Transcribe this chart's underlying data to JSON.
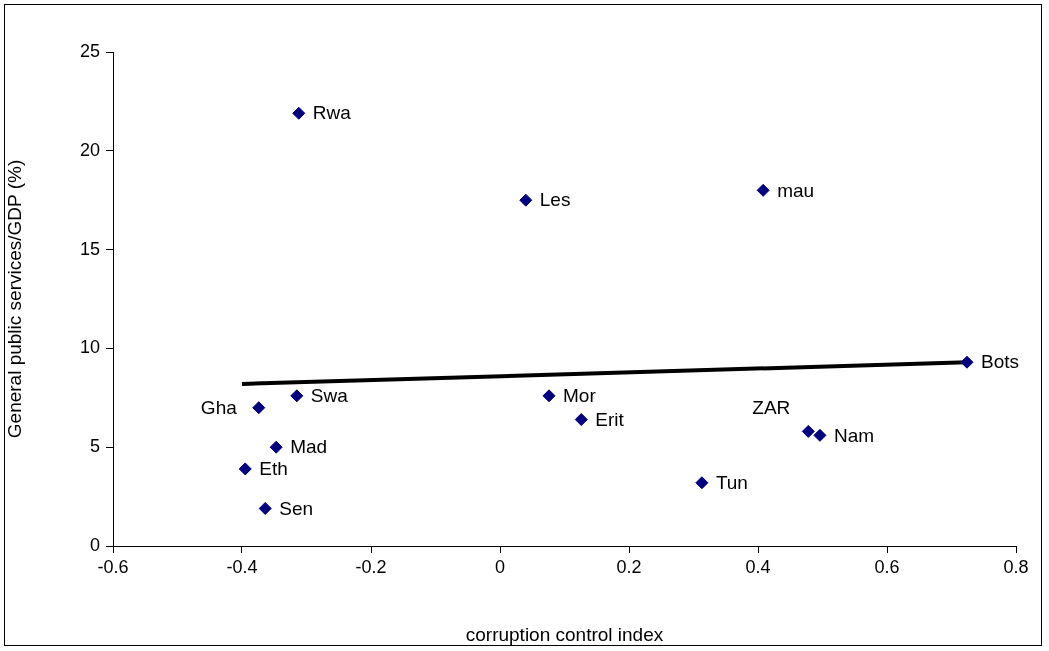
{
  "chart_data": {
    "type": "scatter",
    "xlabel": "corruption control index",
    "ylabel": "General public services/GDP (%)",
    "xlim": [
      -0.6,
      0.8
    ],
    "xticks": [
      -0.6,
      -0.4,
      -0.2,
      0,
      0.2,
      0.4,
      0.6,
      0.8
    ],
    "ylim": [
      0,
      25
    ],
    "yticks": [
      0,
      5,
      10,
      15,
      20,
      25
    ],
    "grid": false,
    "legend": false,
    "marker": "diamond",
    "series": [
      {
        "color": "#000080",
        "x": [
          -0.312,
          0.04,
          0.408,
          0.724,
          -0.374,
          -0.315,
          0.076,
          0.126,
          0.478,
          0.496,
          -0.347,
          -0.395,
          -0.364,
          0.313
        ],
        "values": [
          21.9,
          17.5,
          18.0,
          9.3,
          7.0,
          7.6,
          7.6,
          6.4,
          5.8,
          5.6,
          5.0,
          3.9,
          1.9,
          3.2
        ]
      },
      {
        "type": "line",
        "color": "#000000",
        "marker": "none",
        "x": [
          -0.4,
          0.724
        ],
        "values": [
          8.2,
          9.3
        ]
      }
    ],
    "annotations": [
      {
        "text": "Rwa",
        "x": -0.312,
        "y": 21.9
      },
      {
        "text": "Les",
        "x": 0.04,
        "y": 17.5
      },
      {
        "text": "mau",
        "x": 0.408,
        "y": 18.0
      },
      {
        "text": "Bots",
        "x": 0.724,
        "y": 9.3
      },
      {
        "text": "Gha",
        "x": -0.374,
        "y": 7.0
      },
      {
        "text": "Swa",
        "x": -0.315,
        "y": 7.6
      },
      {
        "text": "Mor",
        "x": 0.076,
        "y": 7.6
      },
      {
        "text": "Erit",
        "x": 0.126,
        "y": 6.4
      },
      {
        "text": "ZAR",
        "x": 0.478,
        "y": 5.8
      },
      {
        "text": "Nam",
        "x": 0.496,
        "y": 5.6
      },
      {
        "text": "Mad",
        "x": -0.347,
        "y": 5.0
      },
      {
        "text": "Eth",
        "x": -0.395,
        "y": 3.9
      },
      {
        "text": "Sen",
        "x": -0.364,
        "y": 1.9
      },
      {
        "text": "Tun",
        "x": 0.313,
        "y": 3.2
      }
    ]
  }
}
